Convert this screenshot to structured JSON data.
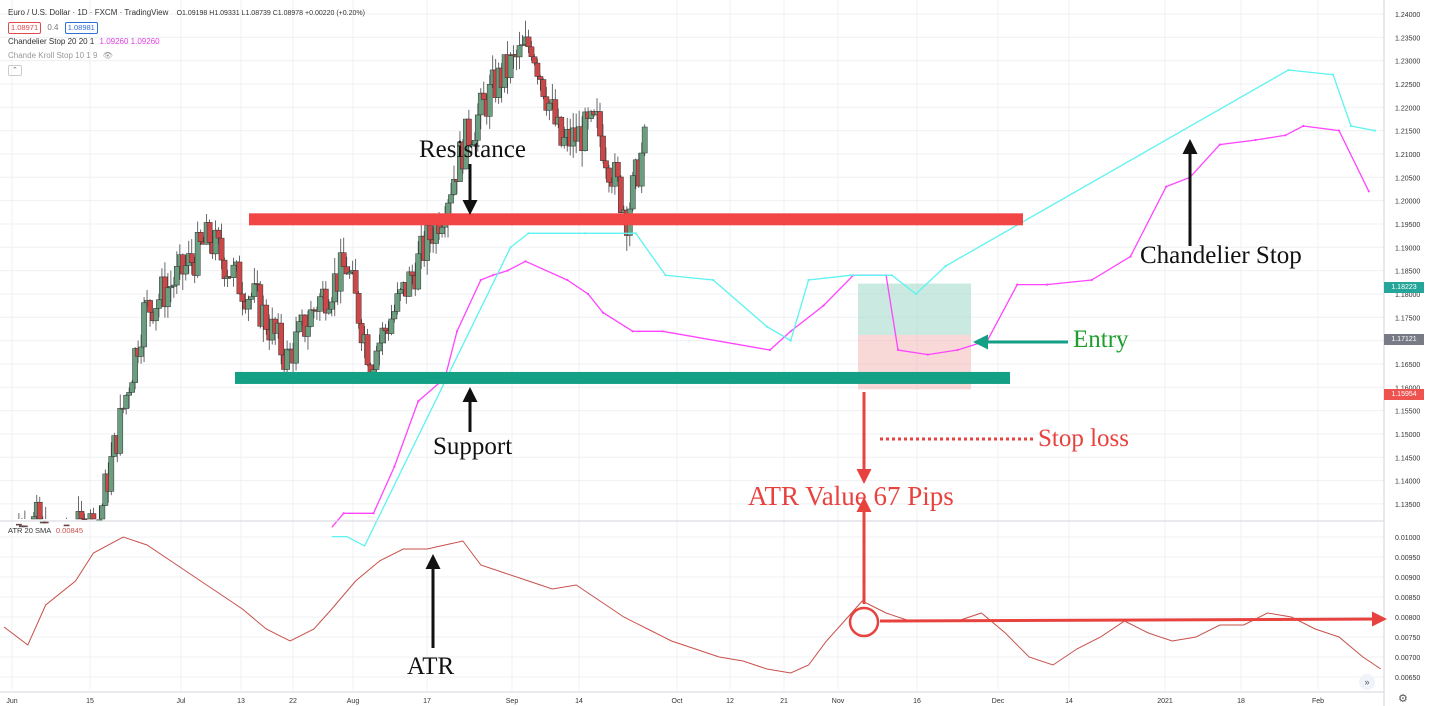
{
  "header": {
    "symbol_line": "Euro / U.S. Dollar · 1D · FXCM · TradingView",
    "ohlc": "O1.09198 H1.09331 L1.08739 C1.08978 +0.00220 (+0.20%)",
    "bid": "1.08971",
    "spread": "0.4",
    "ask": "1.08981",
    "indicator1_name": "Chandelier Stop 20 20 1",
    "indicator1_values": "1.09260 1.09260",
    "indicator2_name": "Chande Kroll Stop 10 1 9",
    "atr_label": "ATR 20 SMA",
    "atr_value": "0.00845"
  },
  "annotations": {
    "resistance": "Resistance",
    "support": "Support",
    "entry": "Entry",
    "stop_loss": "Stop loss",
    "atr_value": "ATR Value 67 Pips",
    "chandelier": "Chandelier Stop",
    "atr": "ATR"
  },
  "price_badges": {
    "current": "1.18223",
    "entry": "1.17121",
    "stop": "1.15954"
  },
  "colors": {
    "up_candle": "#6a9e7f",
    "down_candle": "#cc4848",
    "resistance": "#f24646",
    "support": "#14a085",
    "chandelier_stop": "#ff44ff",
    "chandelier_long": "#5cf3f0",
    "atr_line": "#c8504a",
    "annotation_red": "#e8423f",
    "entry_green": "#1e9e2e"
  },
  "chart_data": [
    {
      "type": "candlestick",
      "title": "Euro / U.S. Dollar · 1D · FXCM",
      "x_tick_labels": [
        "Jun",
        "15",
        "Jul",
        "13",
        "22",
        "Aug",
        "17",
        "Sep",
        "14",
        "Oct",
        "12",
        "21",
        "Nov",
        "16",
        "Dec",
        "14",
        "2021",
        "18",
        "Feb"
      ],
      "y_tick_labels": [
        "1.24000",
        "1.23500",
        "1.23000",
        "1.22500",
        "1.22000",
        "1.21500",
        "1.21000",
        "1.20500",
        "1.20000",
        "1.19500",
        "1.19000",
        "1.18500",
        "1.18000",
        "1.17500",
        "1.17000",
        "1.16500",
        "1.16000",
        "1.15500",
        "1.15000",
        "1.14500",
        "1.14000",
        "1.13500"
      ],
      "ylim": [
        1.131,
        1.241
      ],
      "levels": {
        "resistance": 1.196,
        "support": 1.162,
        "entry": 1.17121,
        "stop": 1.15954,
        "current": 1.18223
      },
      "segments": [
        {
          "n": 12,
          "start": 1.128,
          "end": 1.131
        },
        {
          "n": 6,
          "start": 1.131,
          "end": 1.124
        },
        {
          "n": 5,
          "start": 1.124,
          "end": 1.128
        },
        {
          "n": 10,
          "start": 1.128,
          "end": 1.132
        },
        {
          "n": 15,
          "start": 1.132,
          "end": 1.176
        },
        {
          "n": 12,
          "start": 1.176,
          "end": 1.184
        },
        {
          "n": 10,
          "start": 1.184,
          "end": 1.192
        },
        {
          "n": 8,
          "start": 1.192,
          "end": 1.184
        },
        {
          "n": 8,
          "start": 1.184,
          "end": 1.178
        },
        {
          "n": 10,
          "start": 1.178,
          "end": 1.166
        },
        {
          "n": 10,
          "start": 1.166,
          "end": 1.178
        },
        {
          "n": 10,
          "start": 1.178,
          "end": 1.186
        },
        {
          "n": 8,
          "start": 1.186,
          "end": 1.166
        },
        {
          "n": 14,
          "start": 1.166,
          "end": 1.184
        },
        {
          "n": 10,
          "start": 1.184,
          "end": 1.198
        },
        {
          "n": 8,
          "start": 1.198,
          "end": 1.213
        },
        {
          "n": 10,
          "start": 1.213,
          "end": 1.225
        },
        {
          "n": 12,
          "start": 1.225,
          "end": 1.234
        },
        {
          "n": 10,
          "start": 1.234,
          "end": 1.212
        },
        {
          "n": 12,
          "start": 1.212,
          "end": 1.216
        },
        {
          "n": 10,
          "start": 1.216,
          "end": 1.197
        },
        {
          "n": 6,
          "start": 1.197,
          "end": 1.212
        }
      ],
      "chandelier_stop_series": [
        [
          110,
          1.13
        ],
        [
          114,
          1.133
        ],
        [
          124,
          1.133
        ],
        [
          131,
          1.143
        ],
        [
          139,
          1.157
        ],
        [
          148,
          1.162
        ],
        [
          152,
          1.172
        ],
        [
          160,
          1.183
        ],
        [
          164,
          1.184
        ],
        [
          169,
          1.185
        ],
        [
          175,
          1.187
        ],
        [
          189,
          1.183
        ],
        [
          196,
          1.18
        ],
        [
          201,
          1.176
        ],
        [
          211,
          1.172
        ],
        [
          221,
          1.172
        ],
        [
          257,
          1.168
        ],
        [
          264,
          1.172
        ],
        [
          275,
          1.1775
        ],
        [
          285,
          1.184
        ],
        [
          296,
          1.184
        ],
        [
          300,
          1.168
        ],
        [
          310,
          1.167
        ],
        [
          320,
          1.168
        ],
        [
          330,
          1.17
        ],
        [
          340,
          1.182
        ],
        [
          350,
          1.182
        ],
        [
          365,
          1.183
        ],
        [
          378,
          1.188
        ],
        [
          390,
          1.203
        ],
        [
          398,
          1.205
        ],
        [
          408,
          1.212
        ],
        [
          420,
          1.213
        ],
        [
          430,
          1.214
        ],
        [
          436,
          1.216
        ],
        [
          448,
          1.215
        ],
        [
          458,
          1.202
        ]
      ],
      "chandelier_long_series": [
        [
          110,
          1.128
        ],
        [
          115,
          1.128
        ],
        [
          121,
          1.126
        ],
        [
          170,
          1.19
        ],
        [
          176,
          1.193
        ],
        [
          195,
          1.193
        ],
        [
          212,
          1.193
        ],
        [
          222,
          1.184
        ],
        [
          238,
          1.183
        ],
        [
          256,
          1.173
        ],
        [
          264,
          1.17
        ],
        [
          270,
          1.183
        ],
        [
          284,
          1.184
        ],
        [
          298,
          1.184
        ],
        [
          306,
          1.18
        ],
        [
          316,
          1.186
        ],
        [
          431,
          1.228
        ],
        [
          446,
          1.227
        ],
        [
          452,
          1.216
        ],
        [
          460,
          1.215
        ]
      ]
    },
    {
      "type": "line",
      "title": "ATR 20 SMA",
      "y_tick_labels": [
        "0.01000",
        "0.00950",
        "0.00900",
        "0.00850",
        "0.00800",
        "0.00750",
        "0.00700",
        "0.00650"
      ],
      "ylim": [
        0.0062,
        0.0102
      ],
      "series": [
        {
          "points": [
            [
              0,
              0.00775
            ],
            [
              8,
              0.0073
            ],
            [
              14,
              0.0083
            ],
            [
              24,
              0.0089
            ],
            [
              30,
              0.0096
            ],
            [
              40,
              0.01
            ],
            [
              48,
              0.0098
            ],
            [
              56,
              0.0094
            ],
            [
              64,
              0.009
            ],
            [
              72,
              0.0086
            ],
            [
              80,
              0.0082
            ],
            [
              88,
              0.0077
            ],
            [
              96,
              0.0074
            ],
            [
              104,
              0.0077
            ],
            [
              110,
              0.0082
            ],
            [
              118,
              0.0089
            ],
            [
              126,
              0.0094
            ],
            [
              134,
              0.0097
            ],
            [
              142,
              0.0097
            ],
            [
              148,
              0.0098
            ],
            [
              154,
              0.0099
            ],
            [
              160,
              0.0093
            ],
            [
              168,
              0.0091
            ],
            [
              176,
              0.0089
            ],
            [
              184,
              0.0087
            ],
            [
              192,
              0.0088
            ],
            [
              200,
              0.0084
            ],
            [
              208,
              0.008
            ],
            [
              216,
              0.0077
            ],
            [
              224,
              0.0074
            ],
            [
              232,
              0.0072
            ],
            [
              240,
              0.007
            ],
            [
              248,
              0.0069
            ],
            [
              256,
              0.0067
            ],
            [
              264,
              0.0066
            ],
            [
              270,
              0.0068
            ],
            [
              276,
              0.0074
            ],
            [
              282,
              0.0079
            ],
            [
              288,
              0.0084
            ],
            [
              296,
              0.0081
            ],
            [
              304,
              0.0079
            ],
            [
              312,
              0.0079
            ],
            [
              320,
              0.0079
            ],
            [
              328,
              0.0081
            ],
            [
              336,
              0.0076
            ],
            [
              344,
              0.007
            ],
            [
              352,
              0.0068
            ],
            [
              360,
              0.0072
            ],
            [
              368,
              0.0075
            ],
            [
              376,
              0.0079
            ],
            [
              384,
              0.0076
            ],
            [
              392,
              0.0074
            ],
            [
              400,
              0.0075
            ],
            [
              408,
              0.0078
            ],
            [
              416,
              0.0078
            ],
            [
              424,
              0.0081
            ],
            [
              432,
              0.008
            ],
            [
              440,
              0.0077
            ],
            [
              448,
              0.0075
            ],
            [
              456,
              0.007
            ],
            [
              462,
              0.0067
            ]
          ]
        }
      ],
      "marker_value": 0.0079
    }
  ]
}
